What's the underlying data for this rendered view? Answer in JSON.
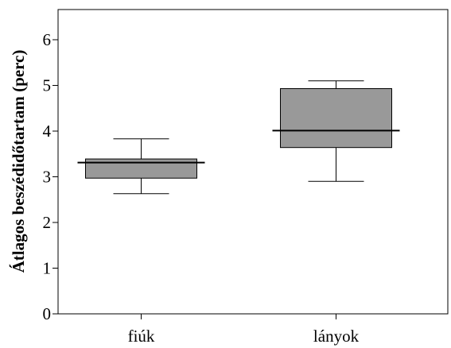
{
  "chart_data": {
    "type": "boxplot",
    "title": "",
    "xlabel": "",
    "ylabel": "Átlagos beszédidőtartam (perc)",
    "ylim": [
      0,
      6.6
    ],
    "yticks": [
      0,
      1,
      2,
      3,
      4,
      5,
      6
    ],
    "ytick_labels": [
      "0",
      "1",
      "2",
      "3",
      "4",
      "5",
      "6"
    ],
    "categories": [
      "fiúk",
      "lányok"
    ],
    "boxes": [
      {
        "category": "fiúk",
        "whisker_low": 2.63,
        "q1": 2.97,
        "median": 3.31,
        "q3": 3.39,
        "whisker_high": 3.83
      },
      {
        "category": "lányok",
        "whisker_low": 2.9,
        "q1": 3.64,
        "median": 4.01,
        "q3": 4.93,
        "whisker_high": 5.1
      }
    ],
    "box_fill": "#999999",
    "line_color": "#000000",
    "grid": false,
    "legend": "none"
  }
}
